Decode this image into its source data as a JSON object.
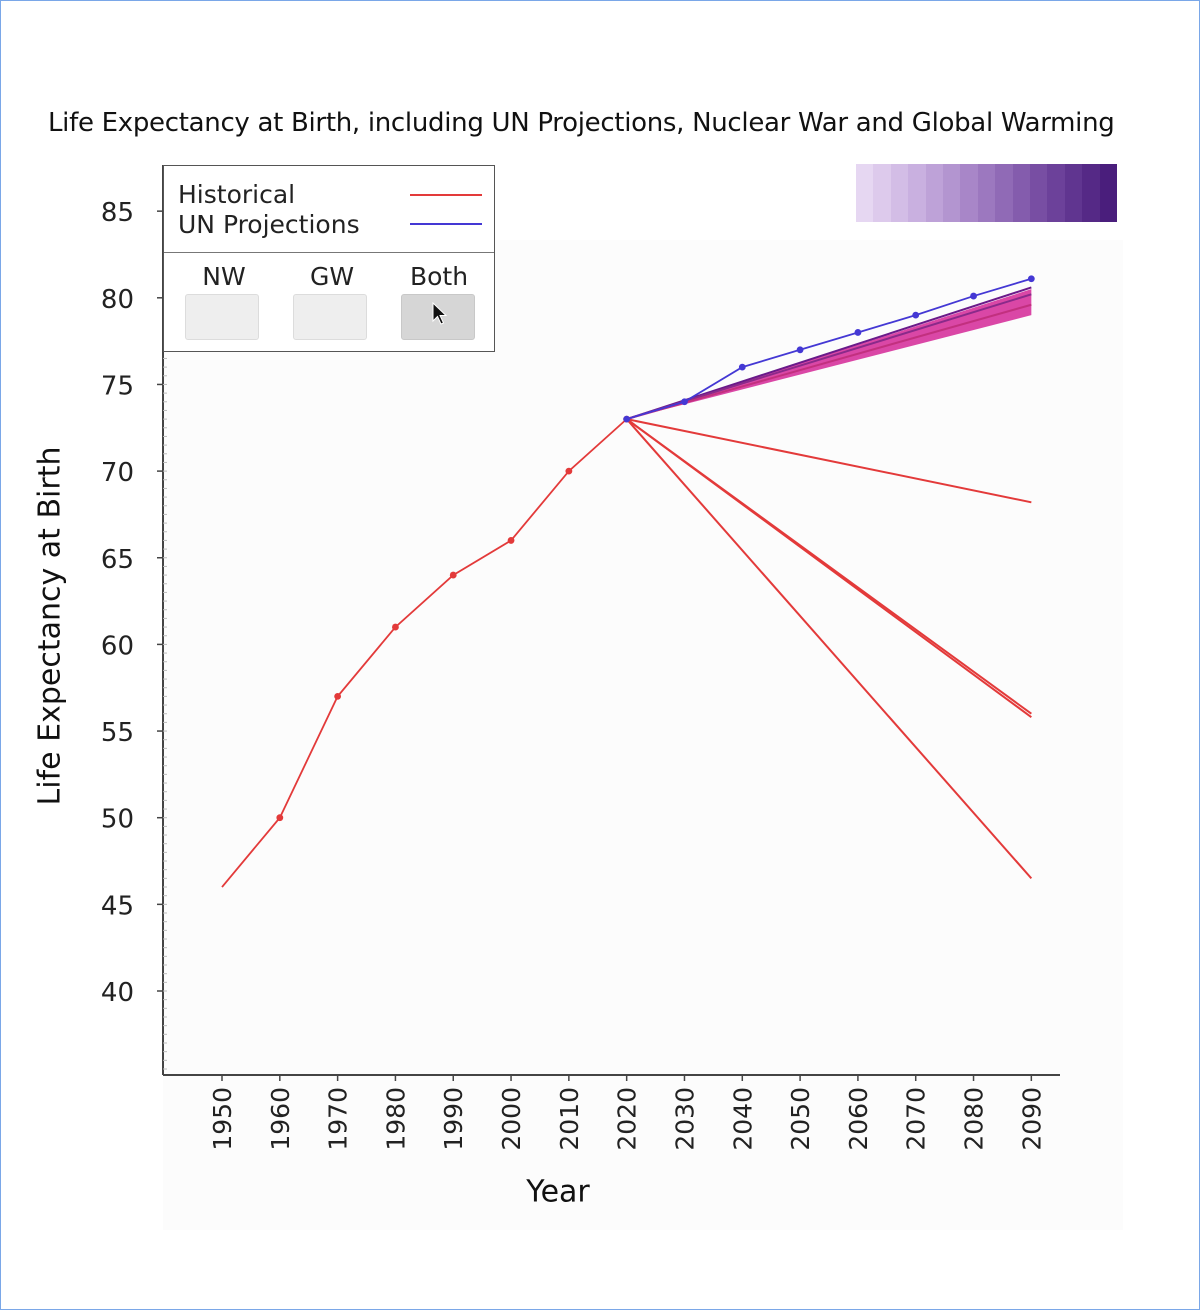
{
  "chart_data": {
    "type": "line",
    "title": "Life Expectancy at Birth, including UN Projections, Nuclear War and Global Warming",
    "xlabel": "Year",
    "ylabel": "Life Expectancy at Birth",
    "x_ticks": [
      1950,
      1960,
      1970,
      1980,
      1990,
      2000,
      2010,
      2020,
      2030,
      2040,
      2050,
      2060,
      2070,
      2080,
      2090
    ],
    "y_ticks": [
      40,
      45,
      50,
      55,
      60,
      65,
      70,
      75,
      80,
      85
    ],
    "xlim": [
      1940,
      2095
    ],
    "ylim": [
      35,
      87
    ],
    "series": [
      {
        "name": "Historical",
        "color": "#e33a3a",
        "x": [
          1950,
          1960,
          1970,
          1980,
          1990,
          2000,
          2010,
          2020
        ],
        "y": [
          46,
          50,
          57,
          61,
          64,
          66,
          70,
          73
        ]
      },
      {
        "name": "UN Projections",
        "color": "#4438d4",
        "x": [
          2020,
          2030,
          2040,
          2050,
          2060,
          2070,
          2080,
          2090
        ],
        "y": [
          73,
          74,
          76,
          77,
          78,
          79,
          80.1,
          81.1
        ]
      }
    ],
    "scenario_lines": [
      {
        "color": "#e33a3a",
        "x": [
          2020,
          2090
        ],
        "y": [
          73,
          68.2
        ]
      },
      {
        "color": "#e33a3a",
        "x": [
          2020,
          2090
        ],
        "y": [
          73,
          56
        ]
      },
      {
        "color": "#e33a3a",
        "x": [
          2020,
          2090
        ],
        "y": [
          73,
          55.8
        ]
      },
      {
        "color": "#e33a3a",
        "x": [
          2020,
          2090
        ],
        "y": [
          73,
          46.5
        ]
      }
    ],
    "warming_band": {
      "color": "#d6339c",
      "x_start": 2020,
      "y_start": 73,
      "x_end": 2090,
      "y_end_low": 79,
      "y_end_high": 80.5
    },
    "warming_lines": [
      {
        "color": "#6a1a8a",
        "y_end": 80.6
      },
      {
        "color": "#8a2a8a",
        "y_end": 80.2
      },
      {
        "color": "#c2307f",
        "y_end": 79.6
      }
    ],
    "legend_position": "top-left",
    "grid": false
  },
  "legend": {
    "historical_label": "Historical",
    "historical_color": "#e33a3a",
    "un_label": "UN Projections",
    "un_color": "#4438d4"
  },
  "toggles": {
    "nw_label": "NW",
    "gw_label": "GW",
    "both_label": "Both",
    "selected": "Both"
  },
  "scale_bar": {
    "colors": [
      "#e6d7f2",
      "#ddcaec",
      "#d3bde6",
      "#c9b0e0",
      "#bea2d8",
      "#b395d0",
      "#a886c8",
      "#9c78bf",
      "#906ab6",
      "#845cad",
      "#784ea3",
      "#6c419a",
      "#603590",
      "#552986",
      "#4a1e7c"
    ]
  }
}
